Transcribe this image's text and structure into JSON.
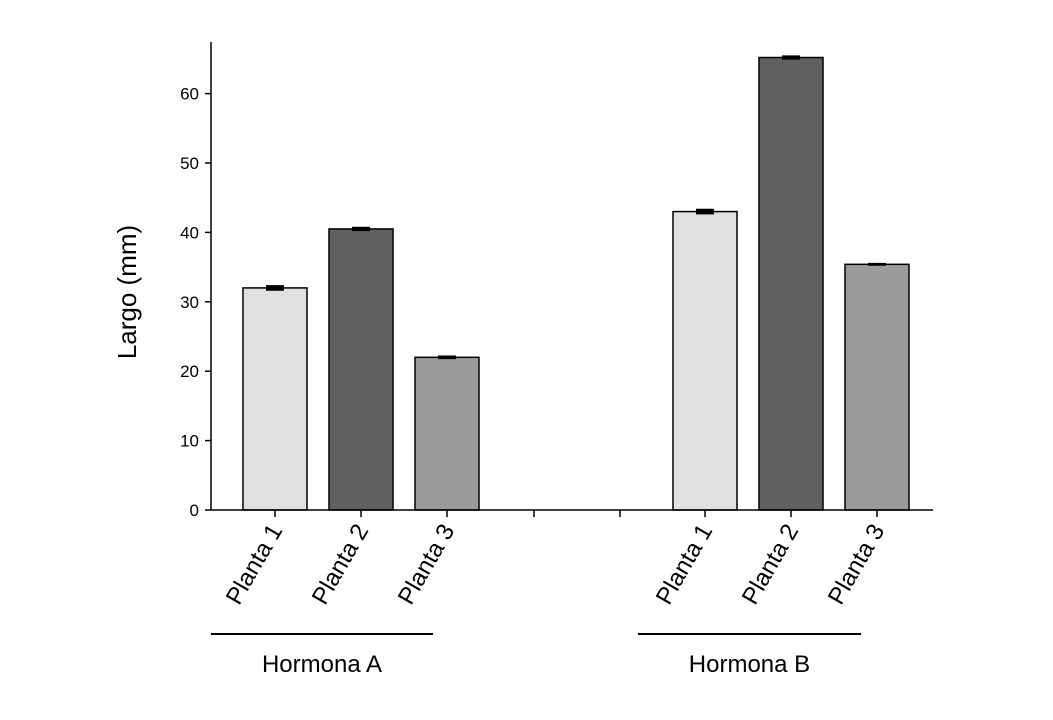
{
  "chart_data": {
    "type": "bar",
    "title": "",
    "ylabel": "Largo (mm)",
    "xlabel": "",
    "ylim": [
      0,
      67
    ],
    "yticks": [
      0,
      10,
      20,
      30,
      40,
      50,
      60
    ],
    "grid": false,
    "groups": [
      {
        "label": "Hormona A",
        "bars": [
          {
            "category": "Planta 1",
            "value": 32,
            "error": 0.3,
            "color": "#e0e0e0"
          },
          {
            "category": "Planta 2",
            "value": 40.5,
            "error": 0.2,
            "color": "#606060"
          },
          {
            "category": "Planta 3",
            "value": 22,
            "error": 0.15,
            "color": "#9b9b9b"
          }
        ]
      },
      {
        "label": "Hormona B",
        "bars": [
          {
            "category": "Planta 1",
            "value": 43,
            "error": 0.3,
            "color": "#e0e0e0"
          },
          {
            "category": "Planta 2",
            "value": 65.2,
            "error": 0.2,
            "color": "#606060"
          },
          {
            "category": "Planta 3",
            "value": 35.4,
            "error": 0.1,
            "color": "#9b9b9b"
          }
        ]
      }
    ]
  }
}
